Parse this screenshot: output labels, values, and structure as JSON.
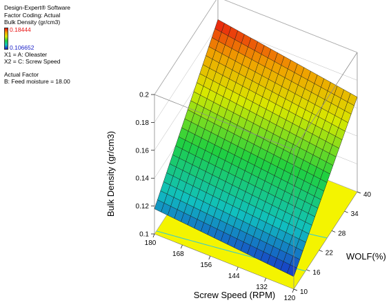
{
  "legend": {
    "software": "Design-Expert® Software",
    "coding": "Factor Coding: Actual",
    "response": "Bulk Density (gr/cm3)",
    "max_value": "0.18444",
    "min_value": "0.106652",
    "x1": "X1 = A: Oleaster",
    "x2": "X2 = C: Screw Speed",
    "actual_factor_title": "Actual Factor",
    "actual_factor": "B: Feed moisture = 18.00"
  },
  "colors": {
    "max_color": "#e81010",
    "min_color": "#1a20c8",
    "floor_color": "#f4f400",
    "frame_color": "#8a8a8a"
  },
  "chart_data": {
    "type": "surface",
    "zlabel": "Bulk Density (gr/cm3)",
    "xlabel": "Screw Speed (RPM)",
    "ylabel": "WOLF(%)",
    "zlim": [
      0.1,
      0.2
    ],
    "z_ticks": [
      "0.1",
      "0.12",
      "0.14",
      "0.16",
      "0.18",
      "0.2"
    ],
    "screw_speed_ticks": [
      "180",
      "168",
      "156",
      "144",
      "132",
      "120"
    ],
    "wolf_ticks": [
      "10",
      "16",
      "22",
      "28",
      "34",
      "40"
    ],
    "screw_speed_range": [
      120,
      180
    ],
    "wolf_range": [
      10,
      40
    ],
    "corners": [
      {
        "screw_speed": 120,
        "wolf": 10,
        "bulk_density": 0.109
      },
      {
        "screw_speed": 180,
        "wolf": 10,
        "bulk_density": 0.118
      },
      {
        "screw_speed": 120,
        "wolf": 40,
        "bulk_density": 0.168
      },
      {
        "screw_speed": 180,
        "wolf": 40,
        "bulk_density": 0.184
      }
    ],
    "grid_divisions": 21
  }
}
